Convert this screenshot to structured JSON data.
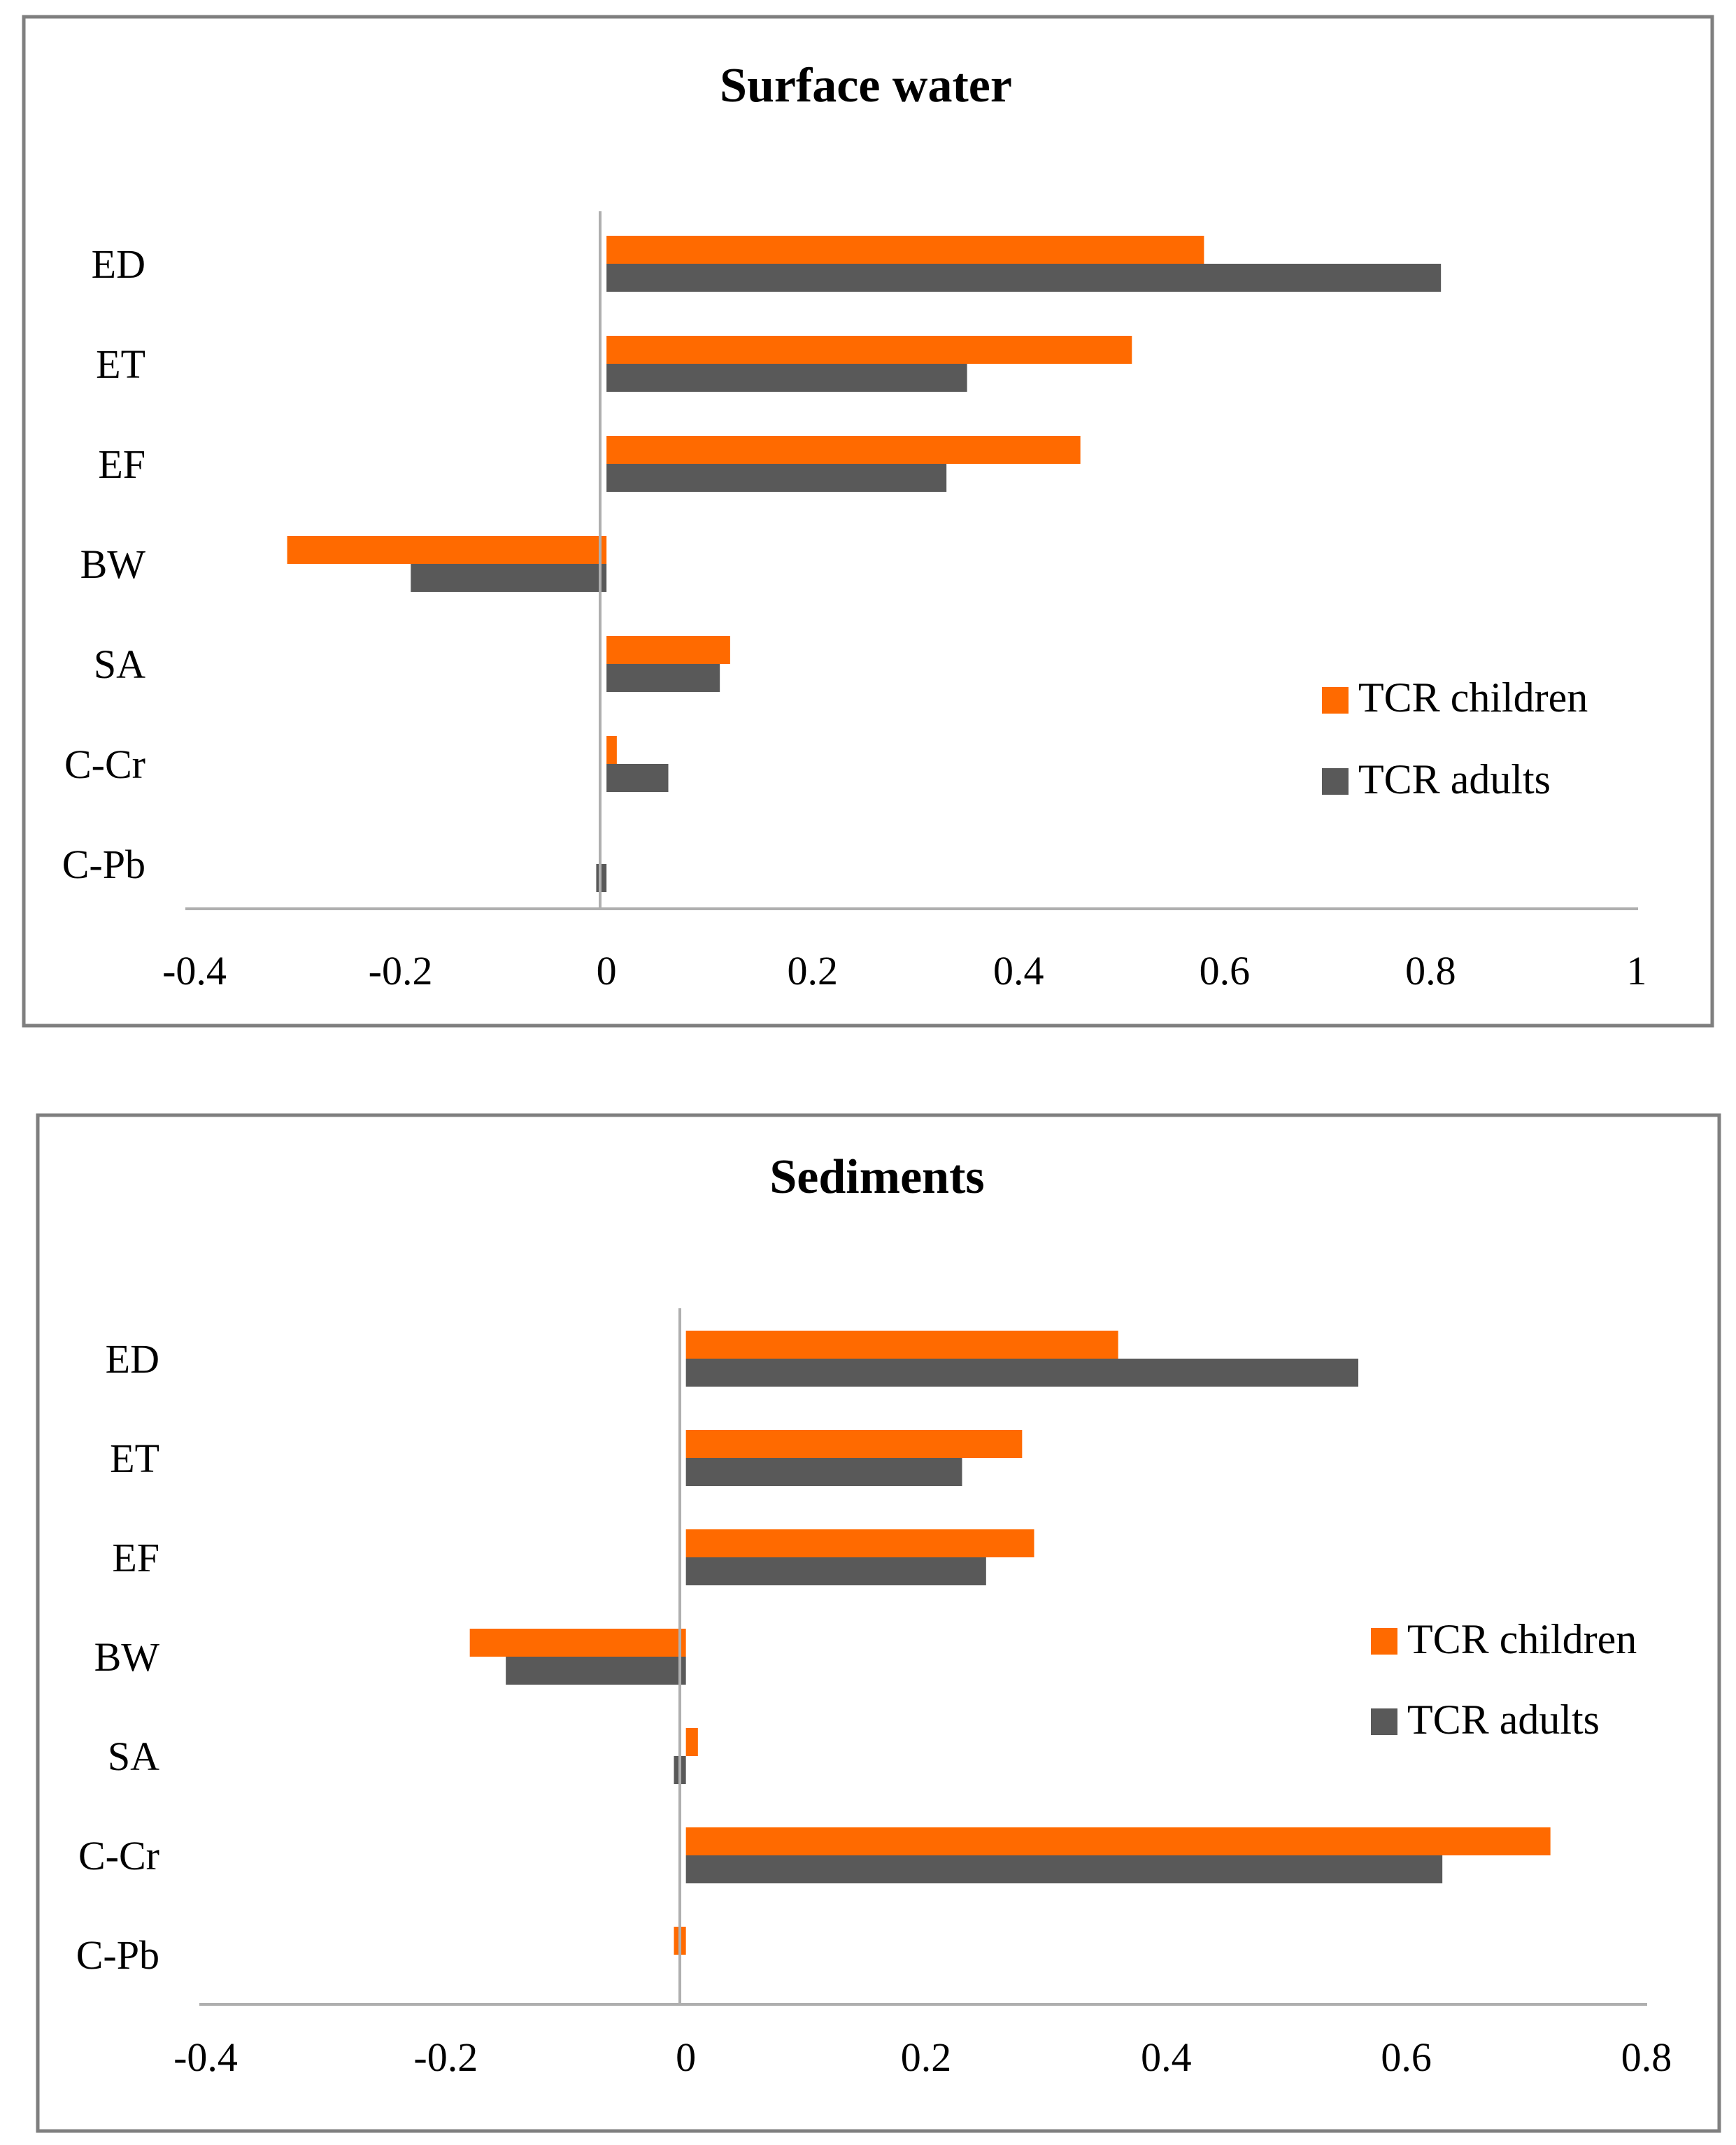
{
  "colors": {
    "children": "#FF6A00",
    "adults": "#595959",
    "axis": "#AFAFAF",
    "frame": "#7F7F7F",
    "text": "#000000"
  },
  "chart_data": [
    {
      "type": "bar",
      "orientation": "horizontal",
      "title": "Surface water",
      "categories": [
        "ED",
        "ET",
        "EF",
        "BW",
        "SA",
        "C-Cr",
        "C-Pb"
      ],
      "series": [
        {
          "name": "TCR children",
          "color": "#FF6A00",
          "values": [
            0.58,
            0.51,
            0.46,
            -0.31,
            0.12,
            0.01,
            0.0
          ]
        },
        {
          "name": "TCR adults",
          "color": "#595959",
          "values": [
            0.81,
            0.35,
            0.33,
            -0.19,
            0.11,
            0.06,
            -0.01
          ]
        }
      ],
      "xlim": [
        -0.4,
        1
      ],
      "xticks": [
        "-0.4",
        "-0.2",
        "0",
        "0.2",
        "0.4",
        "0.6",
        "0.8",
        "1"
      ],
      "grid": false,
      "legend_position": "right"
    },
    {
      "type": "bar",
      "orientation": "horizontal",
      "title": "Sediments",
      "categories": [
        "ED",
        "ET",
        "EF",
        "BW",
        "SA",
        "C-Cr",
        "C-Pb"
      ],
      "series": [
        {
          "name": "TCR children",
          "color": "#FF6A00",
          "values": [
            0.36,
            0.28,
            0.29,
            -0.18,
            0.01,
            0.72,
            -0.01
          ]
        },
        {
          "name": "TCR adults",
          "color": "#595959",
          "values": [
            0.56,
            0.23,
            0.25,
            -0.15,
            -0.01,
            0.63,
            0.0
          ]
        }
      ],
      "xlim": [
        -0.4,
        0.8
      ],
      "xticks": [
        "-0.4",
        "-0.2",
        "0",
        "0.2",
        "0.4",
        "0.6",
        "0.8"
      ],
      "grid": false,
      "legend_position": "right"
    }
  ]
}
